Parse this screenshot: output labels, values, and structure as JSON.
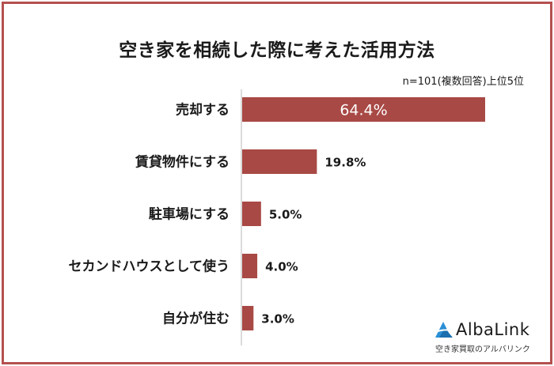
{
  "header": {
    "title": "空き家を相続した際に考えた活用方法",
    "note": "n=101(複数回答)上位5位"
  },
  "logo": {
    "name": "AlbaLink",
    "tagline": "空き家買取のアルバリンク",
    "accent": "#2a8fd6"
  },
  "colors": {
    "bar": "#a84945",
    "frame": "#b5514f"
  },
  "chart_data": {
    "type": "bar",
    "orientation": "horizontal",
    "categories": [
      "売却する",
      "賃貸物件にする",
      "駐車場にする",
      "セカンドハウスとして使う",
      "自分が住む"
    ],
    "values": [
      64.4,
      19.8,
      5.0,
      4.0,
      3.0
    ],
    "value_labels": [
      "64.4%",
      "19.8%",
      "5.0%",
      "4.0%",
      "3.0%"
    ],
    "title": "空き家を相続した際に考えた活用方法",
    "xlim": [
      0,
      64.4
    ],
    "grid": false
  }
}
